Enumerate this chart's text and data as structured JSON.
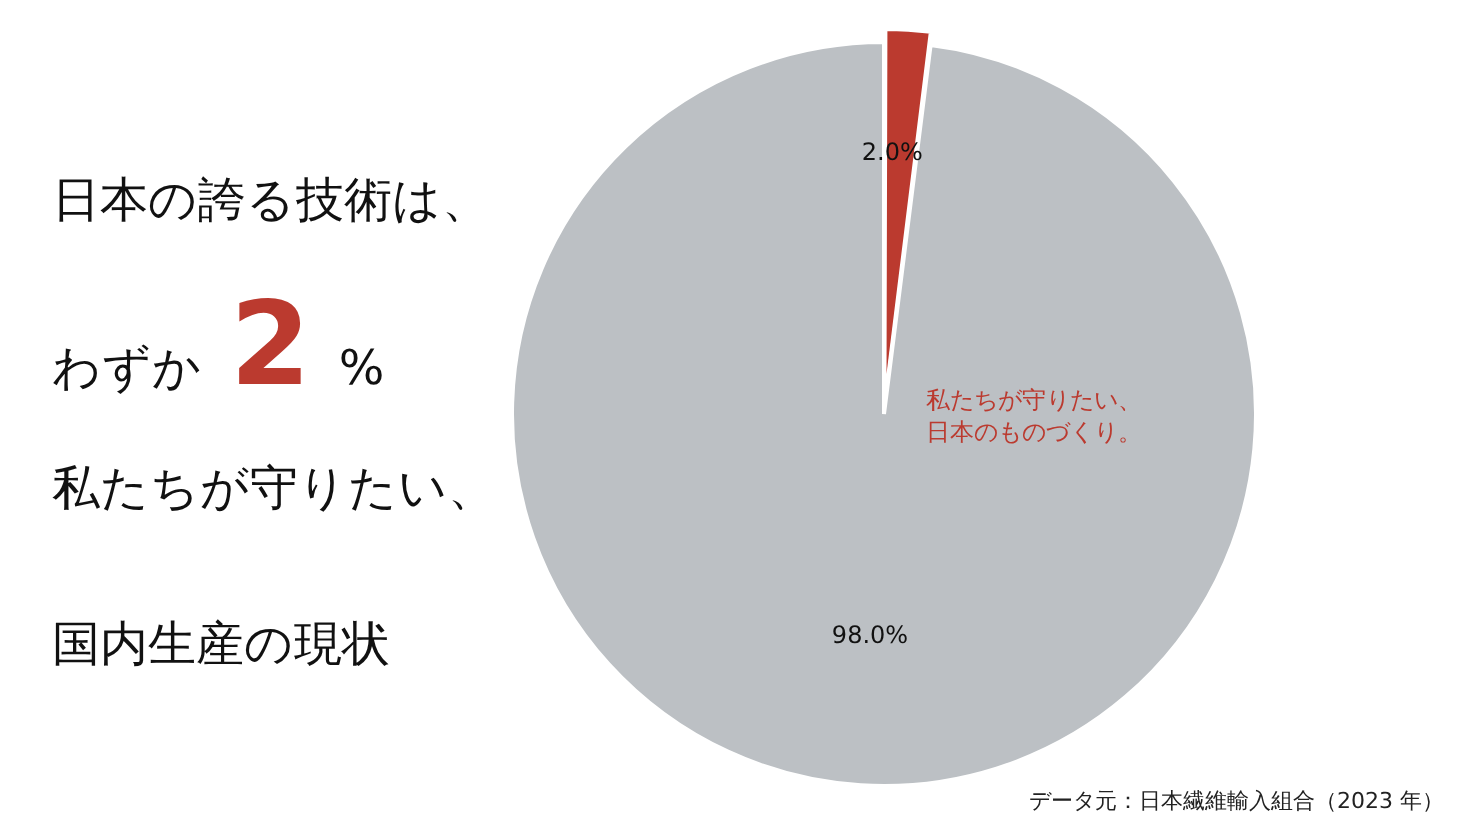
{
  "chart_data": {
    "type": "pie",
    "title": "日本の誇る技術は、",
    "subtitle": "わずか2%",
    "categories": [
      null,
      null
    ],
    "values": [
      2.0,
      98.0
    ],
    "colors": [
      "#bb3a2f",
      "#bcc0c4"
    ],
    "value_labels": [
      "2.0%",
      "98.0%"
    ],
    "legend": false,
    "annotations": [
      "私たちが守りたい、",
      "国内生産の現状",
      "私たちが守りたい、",
      "日本のものづくり。",
      "データ元：日本繊維輸入組合（2023 年）"
    ]
  }
}
